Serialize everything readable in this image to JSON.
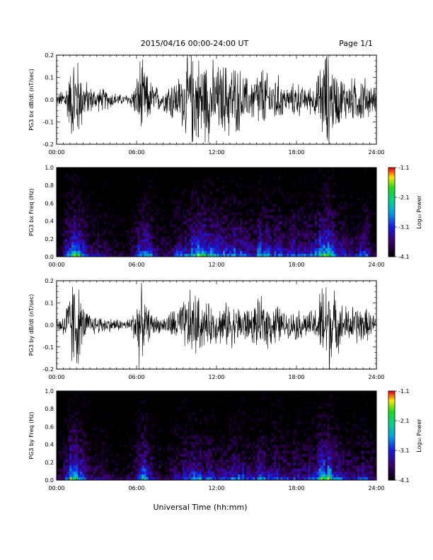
{
  "header": {
    "title": "2015/04/16  00:00-24:00 UT",
    "page": "Page 1/1"
  },
  "xlabel": "Universal Time (hh:mm)",
  "chart_data": [
    {
      "type": "line",
      "ylabel": "PG3 bx dB/dt (nT/sec)",
      "xlim": [
        0,
        24
      ],
      "ylim": [
        -0.2,
        0.2
      ],
      "xticks": [
        "00:00",
        "06:00",
        "12:00",
        "18:00",
        "24:00"
      ],
      "yticks": [
        "0.2",
        "0.1",
        "0.0",
        "-0.1",
        "-0.2"
      ],
      "series": [
        {
          "x": [
            0,
            0.5,
            1,
            1.25,
            1.5,
            2,
            2.5,
            3,
            3.5,
            4,
            4.5,
            5,
            5.5,
            6,
            6.25,
            6.5,
            7,
            7.5,
            8,
            8.5,
            9,
            9.5,
            10,
            10.5,
            11,
            11.5,
            12,
            12.5,
            13,
            13.5,
            14,
            14.5,
            15,
            15.5,
            16,
            16.5,
            17,
            17.5,
            18,
            18.5,
            19,
            19.5,
            20,
            20.25,
            20.5,
            21,
            21.5,
            22,
            22.5,
            23,
            23.5,
            24
          ],
          "envelope": [
            0.02,
            0.05,
            0.12,
            0.21,
            0.2,
            0.1,
            0.06,
            0.05,
            0.05,
            0.04,
            0.03,
            0.02,
            0.03,
            0.08,
            0.2,
            0.15,
            0.09,
            0.06,
            0.04,
            0.1,
            0.09,
            0.13,
            0.21,
            0.2,
            0.19,
            0.18,
            0.15,
            0.16,
            0.17,
            0.15,
            0.12,
            0.08,
            0.13,
            0.15,
            0.09,
            0.12,
            0.07,
            0.05,
            0.09,
            0.05,
            0.06,
            0.08,
            0.2,
            0.22,
            0.19,
            0.12,
            0.1,
            0.09,
            0.1,
            0.11,
            0.07,
            0.05
          ]
        }
      ]
    },
    {
      "type": "heatmap",
      "ylabel": "PG3 bx Freq (Hz)",
      "xlim": [
        0,
        24
      ],
      "ylim": [
        0,
        1
      ],
      "xticks": [
        "00:00",
        "06:00",
        "12:00",
        "18:00",
        "24:00"
      ],
      "yticks": [
        "1.0",
        "0.8",
        "0.6",
        "0.4",
        "0.2",
        "0.0"
      ],
      "colorbar": {
        "label": "Log₁₀ Power",
        "range": [
          -4.1,
          -1.1
        ],
        "ticks": [
          "-1.1",
          "-2.1",
          "-3.1",
          "-4.1"
        ]
      },
      "activity": [
        0.2,
        0.3,
        0.7,
        0.85,
        0.6,
        0.4,
        0.35,
        0.35,
        0.3,
        0.25,
        0.2,
        0.2,
        0.3,
        0.6,
        0.7,
        0.5,
        0.35,
        0.3,
        0.3,
        0.45,
        0.5,
        0.6,
        0.75,
        0.75,
        0.7,
        0.65,
        0.55,
        0.6,
        0.65,
        0.6,
        0.5,
        0.45,
        0.6,
        0.65,
        0.55,
        0.6,
        0.5,
        0.4,
        0.55,
        0.45,
        0.5,
        0.55,
        0.75,
        0.85,
        0.7,
        0.5,
        0.45,
        0.4,
        0.45,
        0.5,
        0.4,
        0.3
      ]
    },
    {
      "type": "line",
      "ylabel": "PG3 by dB/dt (nT/sec)",
      "xlim": [
        0,
        24
      ],
      "ylim": [
        -0.2,
        0.2
      ],
      "xticks": [
        "00:00",
        "06:00",
        "12:00",
        "18:00",
        "24:00"
      ],
      "yticks": [
        "0.2",
        "0.1",
        "0.0",
        "-0.1",
        "-0.2"
      ],
      "series": [
        {
          "x": [
            0,
            0.5,
            1,
            1.25,
            1.5,
            2,
            2.5,
            3,
            3.5,
            4,
            4.5,
            5,
            5.5,
            6,
            6.25,
            6.5,
            7,
            7.5,
            8,
            8.5,
            9,
            9.5,
            10,
            10.5,
            11,
            11.5,
            12,
            12.5,
            13,
            13.5,
            14,
            14.5,
            15,
            15.5,
            16,
            16.5,
            17,
            17.5,
            18,
            18.5,
            19,
            19.5,
            20,
            20.25,
            20.5,
            21,
            21.5,
            22,
            22.5,
            23,
            23.5,
            24
          ],
          "envelope": [
            0.03,
            0.05,
            0.15,
            0.22,
            0.21,
            0.08,
            0.05,
            0.04,
            0.04,
            0.03,
            0.03,
            0.02,
            0.03,
            0.1,
            0.2,
            0.12,
            0.06,
            0.04,
            0.03,
            0.06,
            0.08,
            0.1,
            0.15,
            0.14,
            0.1,
            0.09,
            0.08,
            0.09,
            0.1,
            0.08,
            0.09,
            0.07,
            0.1,
            0.12,
            0.09,
            0.1,
            0.06,
            0.05,
            0.07,
            0.06,
            0.06,
            0.08,
            0.21,
            0.23,
            0.2,
            0.12,
            0.09,
            0.08,
            0.09,
            0.08,
            0.06,
            0.04
          ]
        }
      ]
    },
    {
      "type": "heatmap",
      "ylabel": "PG3 by Freq (Hz)",
      "xlim": [
        0,
        24
      ],
      "ylim": [
        0,
        1
      ],
      "xticks": [
        "00:00",
        "06:00",
        "12:00",
        "18:00",
        "24:00"
      ],
      "yticks": [
        "1.0",
        "0.8",
        "0.6",
        "0.4",
        "0.2",
        "0.0"
      ],
      "colorbar": {
        "label": "Log₁₀ Power",
        "range": [
          -4.1,
          -1.1
        ],
        "ticks": [
          "-1.1",
          "-2.1",
          "-3.1",
          "-4.1"
        ]
      },
      "activity": [
        0.25,
        0.3,
        0.75,
        0.85,
        0.65,
        0.4,
        0.35,
        0.35,
        0.3,
        0.25,
        0.22,
        0.2,
        0.3,
        0.6,
        0.7,
        0.45,
        0.3,
        0.28,
        0.3,
        0.4,
        0.45,
        0.5,
        0.6,
        0.55,
        0.5,
        0.5,
        0.45,
        0.5,
        0.55,
        0.5,
        0.45,
        0.42,
        0.5,
        0.55,
        0.5,
        0.5,
        0.42,
        0.38,
        0.45,
        0.42,
        0.45,
        0.5,
        0.75,
        0.85,
        0.7,
        0.5,
        0.42,
        0.4,
        0.42,
        0.45,
        0.38,
        0.3
      ]
    }
  ]
}
